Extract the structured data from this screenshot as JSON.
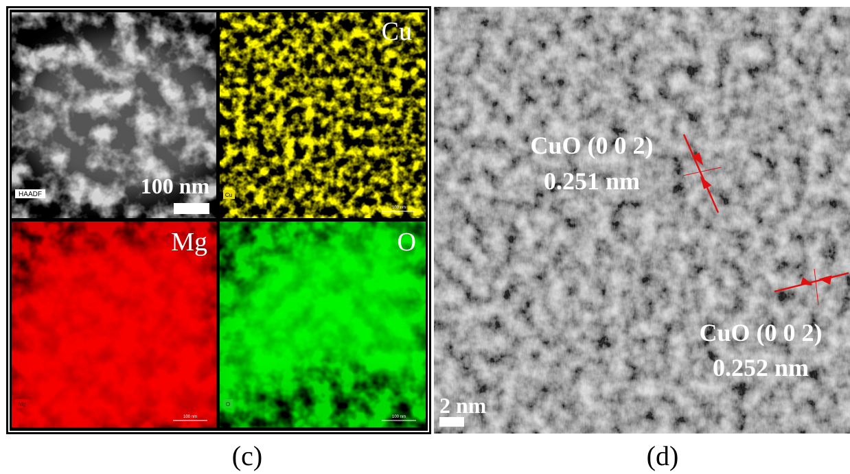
{
  "figure": {
    "panel_c": {
      "haadf": {
        "label": "HAADF",
        "scale_bar": "100 nm"
      },
      "cu": {
        "title": "Cu",
        "tag": "Cu",
        "scale_bar": "100 nm"
      },
      "mg": {
        "title": "Mg",
        "tag": "Mg",
        "scale_bar": "100 nm"
      },
      "o": {
        "title": "O",
        "tag": "O",
        "scale_bar": "100 nm"
      }
    },
    "panel_d": {
      "annotations": [
        {
          "phase": "CuO (0 0 2)",
          "spacing": "0.251 nm"
        },
        {
          "phase": "CuO (0 0 2)",
          "spacing": "0.252 nm"
        }
      ],
      "scale_bar": "2 nm"
    },
    "captions": [
      "(c)",
      "(d)"
    ]
  }
}
